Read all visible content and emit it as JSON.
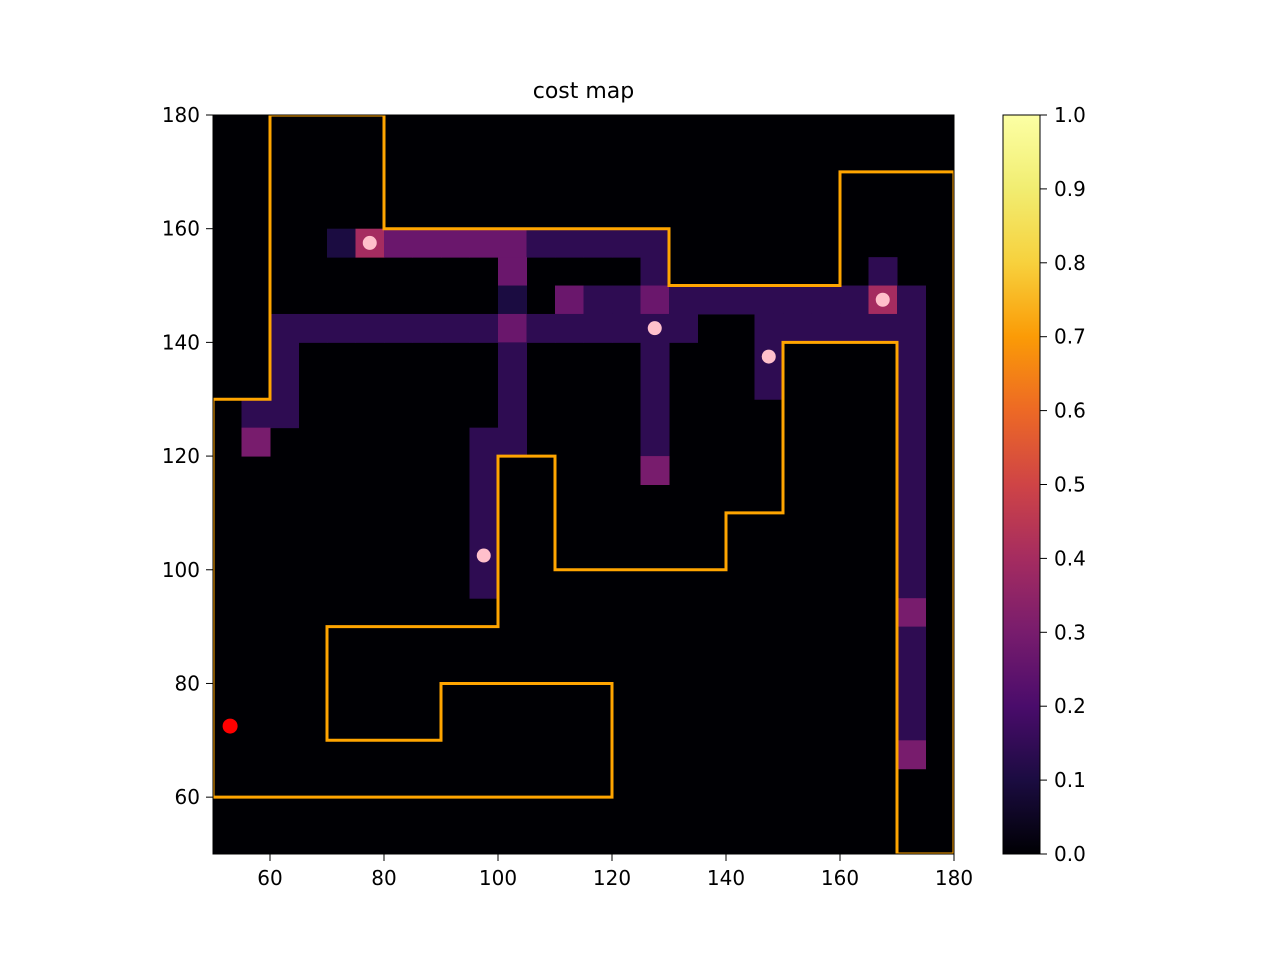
{
  "chart_data": {
    "type": "heatmap",
    "title": "cost map",
    "xlabel": "",
    "ylabel": "",
    "xlim": [
      50,
      180
    ],
    "ylim": [
      50,
      180
    ],
    "x_ticks": [
      60,
      80,
      100,
      120,
      140,
      160,
      180
    ],
    "y_ticks": [
      60,
      80,
      100,
      120,
      140,
      160,
      180
    ],
    "cell_size": 5,
    "colormap": "inferno",
    "colorbar": {
      "range": [
        0.0,
        1.0
      ],
      "ticks": [
        "0.0",
        "0.1",
        "0.2",
        "0.3",
        "0.4",
        "0.5",
        "0.6",
        "0.7",
        "0.8",
        "0.9",
        "1.0"
      ]
    },
    "background_value": 0.0,
    "cells": [
      [
        70,
        155,
        0.1
      ],
      [
        75,
        155,
        0.4
      ],
      [
        80,
        155,
        0.27
      ],
      [
        85,
        155,
        0.27
      ],
      [
        90,
        155,
        0.27
      ],
      [
        95,
        155,
        0.27
      ],
      [
        100,
        155,
        0.27
      ],
      [
        105,
        155,
        0.14
      ],
      [
        110,
        155,
        0.14
      ],
      [
        115,
        155,
        0.14
      ],
      [
        120,
        155,
        0.14
      ],
      [
        125,
        155,
        0.14
      ],
      [
        100,
        150,
        0.27
      ],
      [
        125,
        150,
        0.14
      ],
      [
        165,
        150,
        0.14
      ],
      [
        100,
        145,
        0.1
      ],
      [
        110,
        145,
        0.27
      ],
      [
        115,
        145,
        0.14
      ],
      [
        120,
        145,
        0.14
      ],
      [
        125,
        145,
        0.27
      ],
      [
        130,
        145,
        0.14
      ],
      [
        135,
        145,
        0.14
      ],
      [
        140,
        145,
        0.14
      ],
      [
        145,
        145,
        0.14
      ],
      [
        150,
        145,
        0.14
      ],
      [
        155,
        145,
        0.14
      ],
      [
        160,
        145,
        0.14
      ],
      [
        165,
        145,
        0.4
      ],
      [
        170,
        145,
        0.14
      ],
      [
        60,
        140,
        0.14
      ],
      [
        65,
        140,
        0.14
      ],
      [
        70,
        140,
        0.14
      ],
      [
        75,
        140,
        0.14
      ],
      [
        80,
        140,
        0.14
      ],
      [
        85,
        140,
        0.14
      ],
      [
        90,
        140,
        0.14
      ],
      [
        95,
        140,
        0.14
      ],
      [
        100,
        140,
        0.27
      ],
      [
        105,
        140,
        0.14
      ],
      [
        110,
        140,
        0.14
      ],
      [
        115,
        140,
        0.14
      ],
      [
        120,
        140,
        0.14
      ],
      [
        125,
        140,
        0.14
      ],
      [
        130,
        140,
        0.14
      ],
      [
        145,
        140,
        0.14
      ],
      [
        150,
        140,
        0.14
      ],
      [
        155,
        140,
        0.14
      ],
      [
        160,
        140,
        0.14
      ],
      [
        165,
        140,
        0.14
      ],
      [
        170,
        140,
        0.14
      ],
      [
        60,
        135,
        0.14
      ],
      [
        100,
        135,
        0.14
      ],
      [
        125,
        135,
        0.14
      ],
      [
        145,
        135,
        0.14
      ],
      [
        170,
        135,
        0.14
      ],
      [
        60,
        130,
        0.14
      ],
      [
        100,
        130,
        0.14
      ],
      [
        125,
        130,
        0.14
      ],
      [
        145,
        130,
        0.14
      ],
      [
        170,
        130,
        0.14
      ],
      [
        55,
        125,
        0.14
      ],
      [
        60,
        125,
        0.14
      ],
      [
        100,
        125,
        0.14
      ],
      [
        125,
        125,
        0.14
      ],
      [
        170,
        125,
        0.14
      ],
      [
        55,
        120,
        0.3
      ],
      [
        95,
        120,
        0.14
      ],
      [
        100,
        120,
        0.14
      ],
      [
        125,
        120,
        0.14
      ],
      [
        170,
        120,
        0.14
      ],
      [
        95,
        115,
        0.14
      ],
      [
        125,
        115,
        0.3
      ],
      [
        170,
        115,
        0.14
      ],
      [
        95,
        110,
        0.14
      ],
      [
        170,
        110,
        0.14
      ],
      [
        95,
        105,
        0.14
      ],
      [
        170,
        105,
        0.14
      ],
      [
        95,
        100,
        0.14
      ],
      [
        170,
        100,
        0.14
      ],
      [
        95,
        95,
        0.14
      ],
      [
        170,
        95,
        0.14
      ],
      [
        170,
        90,
        0.3
      ],
      [
        170,
        85,
        0.14
      ],
      [
        170,
        80,
        0.14
      ],
      [
        170,
        75,
        0.14
      ],
      [
        170,
        70,
        0.14
      ],
      [
        170,
        65,
        0.3
      ]
    ],
    "obstacles": [
      {
        "color": "#ffa500",
        "points": [
          [
            50,
            60
          ],
          [
            120,
            60
          ],
          [
            120,
            80
          ],
          [
            90,
            80
          ],
          [
            90,
            70
          ],
          [
            70,
            70
          ],
          [
            70,
            90
          ],
          [
            100,
            90
          ],
          [
            100,
            120
          ],
          [
            110,
            120
          ],
          [
            110,
            100
          ],
          [
            140,
            100
          ],
          [
            140,
            110
          ],
          [
            150,
            110
          ],
          [
            150,
            140
          ],
          [
            170,
            140
          ],
          [
            170,
            50
          ],
          [
            180,
            50
          ],
          [
            180,
            170
          ],
          [
            160,
            170
          ],
          [
            160,
            150
          ],
          [
            130,
            150
          ],
          [
            130,
            160
          ],
          [
            80,
            160
          ],
          [
            80,
            180
          ],
          [
            60,
            180
          ],
          [
            60,
            130
          ],
          [
            50,
            130
          ],
          [
            50,
            60
          ]
        ]
      }
    ],
    "targets": [
      {
        "x": 77.5,
        "y": 157.5,
        "color": "#ffc0cb"
      },
      {
        "x": 127.5,
        "y": 142.5,
        "color": "#ffc0cb"
      },
      {
        "x": 147.5,
        "y": 137.5,
        "color": "#ffc0cb"
      },
      {
        "x": 167.5,
        "y": 147.5,
        "color": "#ffc0cb"
      },
      {
        "x": 97.5,
        "y": 102.5,
        "color": "#ffc0cb"
      }
    ],
    "agent": {
      "x": 53,
      "y": 72.5,
      "color": "#ff0000"
    }
  }
}
